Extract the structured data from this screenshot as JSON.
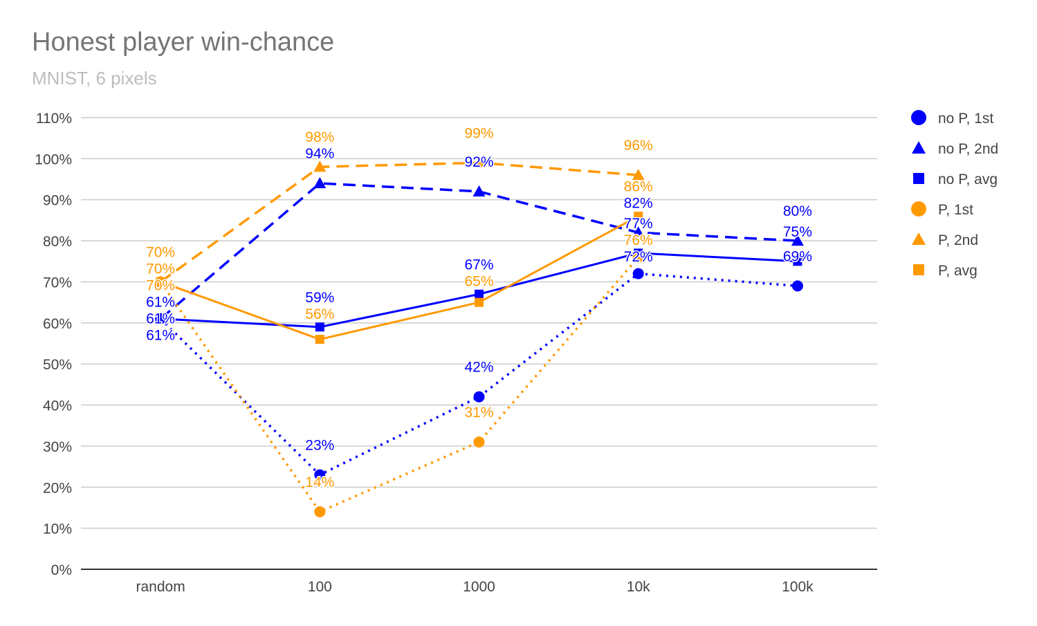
{
  "chart_data": {
    "type": "line",
    "title": "Honest player win-chance",
    "subtitle": "MNIST, 6 pixels",
    "xlabel": "",
    "ylabel": "",
    "categories": [
      "random",
      "100",
      "1000",
      "10k",
      "100k"
    ],
    "ylim": [
      0,
      110
    ],
    "yticks": [
      "0%",
      "10%",
      "20%",
      "30%",
      "40%",
      "50%",
      "60%",
      "70%",
      "80%",
      "90%",
      "100%",
      "110%"
    ],
    "grid": true,
    "legend_position": "right",
    "series": [
      {
        "name": "no P, 1st",
        "color": "#0000ff",
        "marker": "circle",
        "line": "dotted",
        "values": [
          61,
          23,
          42,
          72,
          69
        ]
      },
      {
        "name": "no P, 2nd",
        "color": "#0000ff",
        "marker": "triangle",
        "line": "dashed",
        "values": [
          61,
          94,
          92,
          82,
          80
        ]
      },
      {
        "name": "no P, avg",
        "color": "#0000ff",
        "marker": "square",
        "line": "solid",
        "values": [
          61,
          59,
          67,
          77,
          75
        ]
      },
      {
        "name": "P, 1st",
        "color": "#ff9900",
        "marker": "circle",
        "line": "dotted",
        "values": [
          70,
          14,
          31,
          76,
          null
        ]
      },
      {
        "name": "P, 2nd",
        "color": "#ff9900",
        "marker": "triangle",
        "line": "dashed",
        "values": [
          70,
          98,
          99,
          96,
          null
        ]
      },
      {
        "name": "P, avg",
        "color": "#ff9900",
        "marker": "square",
        "line": "solid",
        "values": [
          70,
          56,
          65,
          86,
          null
        ]
      }
    ]
  }
}
